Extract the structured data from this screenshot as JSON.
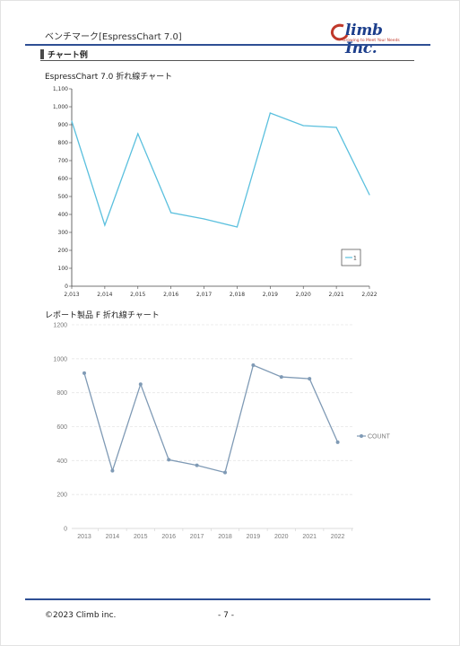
{
  "header": {
    "title": "ベンチマーク[EspressChart 7.0]",
    "logo_text": "limb Inc.",
    "logo_tagline": "Growing to Meet Your Needs"
  },
  "section": {
    "title": "チャート例"
  },
  "colors": {
    "accent": "#2e4f94",
    "line1": "#5bc0de",
    "line2": "#7f9ab5"
  },
  "chart_data": [
    {
      "type": "line",
      "title": "EspressChart 7.0 折れ線チャート",
      "x": [
        "2,013",
        "2,014",
        "2,015",
        "2,016",
        "2,017",
        "2,018",
        "2,019",
        "2,020",
        "2,021",
        "2,022"
      ],
      "series": [
        {
          "name": "1",
          "values": [
            920,
            340,
            850,
            410,
            375,
            330,
            965,
            895,
            885,
            510
          ]
        }
      ],
      "ylim": [
        0,
        1100
      ],
      "yticks": [
        "0",
        "100",
        "200",
        "300",
        "400",
        "500",
        "600",
        "700",
        "800",
        "900",
        "1,000",
        "1,100"
      ],
      "legend": "bottom-right",
      "grid": false
    },
    {
      "type": "line",
      "title": "レポート製品 F 折れ線チャート",
      "x": [
        "2013",
        "2014",
        "2015",
        "2016",
        "2017",
        "2018",
        "2019",
        "2020",
        "2021",
        "2022"
      ],
      "series": [
        {
          "name": "COUNT",
          "values": [
            915,
            340,
            850,
            405,
            372,
            330,
            962,
            893,
            882,
            508
          ]
        }
      ],
      "ylim": [
        0,
        1200
      ],
      "yticks": [
        "0",
        "200",
        "400",
        "600",
        "800",
        "1000",
        "1200"
      ],
      "legend": "right",
      "grid": true
    }
  ],
  "footer": {
    "copyright": "©2023 Climb inc.",
    "page": "- 7 -"
  }
}
